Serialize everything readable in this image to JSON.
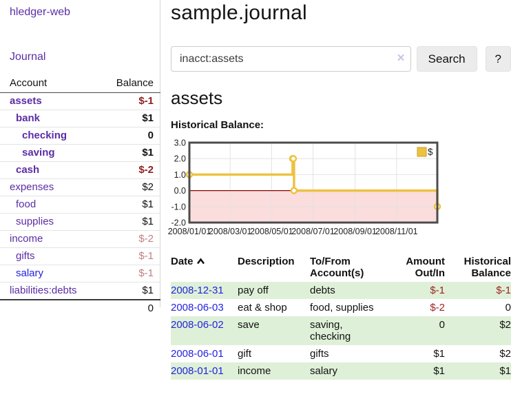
{
  "app": {
    "brand": "hledger-web",
    "nav_journal": "Journal"
  },
  "colors": {
    "link_purple": "#5b2da5",
    "link_blue": "#2222e0",
    "negative_strong": "#8f1d1d",
    "negative_dim": "#c28080",
    "row_green": "#dff0d8"
  },
  "sidebar": {
    "headers": {
      "account": "Account",
      "balance": "Balance"
    },
    "accounts": [
      {
        "name": "assets",
        "indent": 0,
        "balance": "$-1",
        "bold": true,
        "balance_class": "neg-strong",
        "blue": false
      },
      {
        "name": "bank",
        "indent": 1,
        "balance": "$1",
        "bold": true,
        "balance_class": "",
        "blue": false
      },
      {
        "name": "checking",
        "indent": 2,
        "balance": "0",
        "bold": true,
        "balance_class": "",
        "blue": false
      },
      {
        "name": "saving",
        "indent": 2,
        "balance": "$1",
        "bold": true,
        "balance_class": "",
        "blue": false
      },
      {
        "name": "cash",
        "indent": 1,
        "balance": "$-2",
        "bold": true,
        "balance_class": "neg-strong",
        "blue": false
      },
      {
        "name": "expenses",
        "indent": 0,
        "balance": "$2",
        "bold": false,
        "balance_class": "",
        "blue": false
      },
      {
        "name": "food",
        "indent": 1,
        "balance": "$1",
        "bold": false,
        "balance_class": "",
        "blue": false
      },
      {
        "name": "supplies",
        "indent": 1,
        "balance": "$1",
        "bold": false,
        "balance_class": "",
        "blue": false
      },
      {
        "name": "income",
        "indent": 0,
        "balance": "$-2",
        "bold": false,
        "balance_class": "neg-dim",
        "blue": false
      },
      {
        "name": "gifts",
        "indent": 1,
        "balance": "$-1",
        "bold": false,
        "balance_class": "neg-dim",
        "blue": false
      },
      {
        "name": "salary",
        "indent": 1,
        "balance": "$-1",
        "bold": false,
        "balance_class": "neg-dim",
        "blue": true
      },
      {
        "name": "liabilities:debts",
        "indent": 0,
        "balance": "$1",
        "bold": false,
        "balance_class": "",
        "blue": false
      }
    ],
    "total": "0"
  },
  "header": {
    "title": "sample.journal"
  },
  "search": {
    "value": "inacct:assets",
    "clear_icon": "×",
    "button_label": "Search",
    "help_label": "?"
  },
  "account_page": {
    "heading": "assets",
    "chart_label": "Historical Balance:"
  },
  "chart_data": {
    "type": "line",
    "title": "Historical Balance of assets",
    "step": true,
    "xlim": [
      "2008-01-01",
      "2008-12-31"
    ],
    "ylim": [
      -2,
      3
    ],
    "x_ticks": [
      "2008/01/01",
      "2008/03/01",
      "2008/05/01",
      "2008/07/01",
      "2008/09/01",
      "2008/11/01"
    ],
    "y_ticks": [
      3.0,
      2.0,
      1.0,
      0.0,
      -1.0,
      -2.0
    ],
    "grid": true,
    "legend_position": "top-right",
    "series": [
      {
        "name": "$",
        "color": "#EDC240",
        "points": [
          [
            "2008-01-01",
            1
          ],
          [
            "2008-06-01",
            2
          ],
          [
            "2008-06-02",
            2
          ],
          [
            "2008-06-03",
            0
          ],
          [
            "2008-12-31",
            -1
          ]
        ]
      }
    ],
    "colors": {
      "grid": "#e2e2e2",
      "border": "#4c4c4c",
      "zero_line": "#8b0000",
      "negative_region": "#fbdddd",
      "legend_border": "#c7a02f",
      "tick_text": "#222222"
    }
  },
  "register": {
    "columns": {
      "date": "Date",
      "description": "Description",
      "accounts": "To/From Account(s)",
      "amount": "Amount Out/In",
      "balance": "Historical Balance"
    },
    "rows": [
      {
        "date": "2008-12-31",
        "description": "pay off",
        "accounts": "debts",
        "amount": "$-1",
        "balance": "$-1",
        "amount_neg": true,
        "balance_neg": true
      },
      {
        "date": "2008-06-03",
        "description": "eat & shop",
        "accounts": "food, supplies",
        "amount": "$-2",
        "balance": "0",
        "amount_neg": true,
        "balance_neg": false
      },
      {
        "date": "2008-06-02",
        "description": "save",
        "accounts": "saving, checking",
        "amount": "0",
        "balance": "$2",
        "amount_neg": false,
        "balance_neg": false
      },
      {
        "date": "2008-06-01",
        "description": "gift",
        "accounts": "gifts",
        "amount": "$1",
        "balance": "$2",
        "amount_neg": false,
        "balance_neg": false
      },
      {
        "date": "2008-01-01",
        "description": "income",
        "accounts": "salary",
        "amount": "$1",
        "balance": "$1",
        "amount_neg": false,
        "balance_neg": false
      }
    ]
  }
}
